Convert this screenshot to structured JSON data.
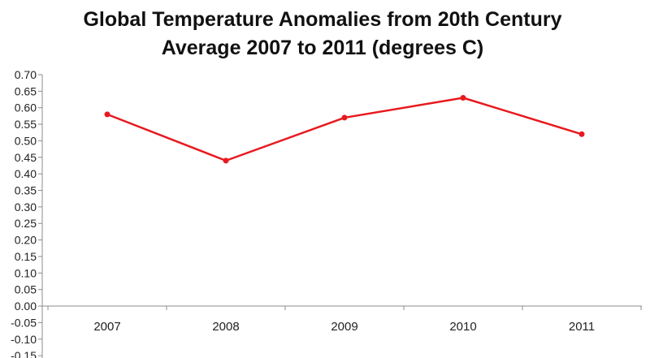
{
  "chart_data": {
    "type": "line",
    "title_lines": [
      "Global Temperature Anomalies from 20th Century",
      "Average 2007 to 2011 (degrees C)"
    ],
    "categories": [
      "2007",
      "2008",
      "2009",
      "2010",
      "2011"
    ],
    "series": [
      {
        "values": [
          0.58,
          0.44,
          0.57,
          0.63,
          0.52
        ],
        "color": "#e8191f"
      }
    ],
    "y_ticks": [
      "0.70",
      "0.65",
      "0.60",
      "0.55",
      "0.50",
      "0.45",
      "0.40",
      "0.35",
      "0.30",
      "0.25",
      "0.20",
      "0.15",
      "0.10",
      "0.05",
      "0.00",
      "-0.05",
      "-0.10",
      "-0.15"
    ],
    "ylim": [
      -0.15,
      0.7
    ],
    "ystep": 0.05,
    "grid": false,
    "legend": "none",
    "axis_color": "#8c8c8c"
  }
}
